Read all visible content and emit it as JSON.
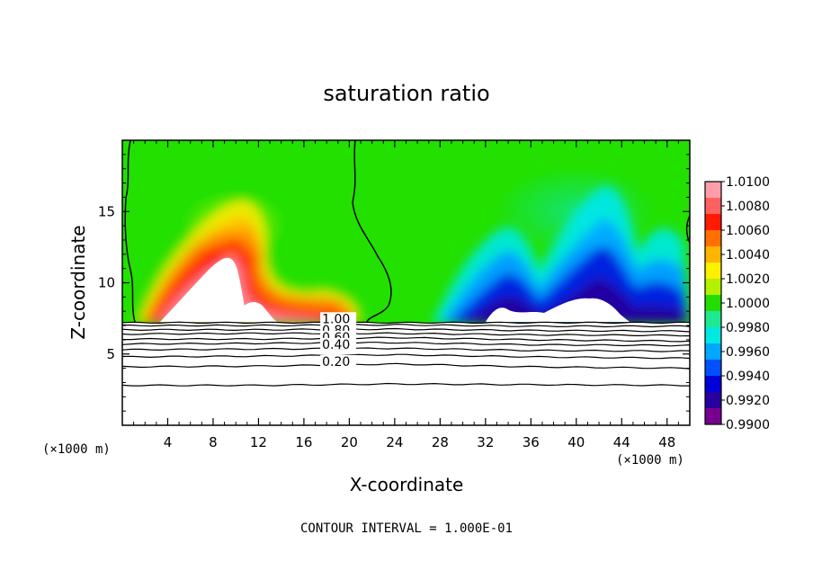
{
  "chart_data": {
    "type": "heatmap",
    "title": "saturation ratio",
    "xlabel": "X-coordinate",
    "ylabel": "Z-coordinate",
    "x_unit_left": "(×1000 m)",
    "x_unit_right": "(×1000 m)",
    "footer": "CONTOUR INTERVAL = 1.000E-01",
    "xlim": [
      0,
      50
    ],
    "ylim": [
      0,
      20
    ],
    "x_ticks": [
      4,
      8,
      12,
      16,
      20,
      24,
      28,
      32,
      36,
      40,
      44,
      48
    ],
    "x_tick_labels": [
      "4",
      "8",
      "12",
      "16",
      "20",
      "24",
      "28",
      "32",
      "36",
      "40",
      "44",
      "48"
    ],
    "y_ticks": [
      5,
      10,
      15
    ],
    "y_tick_labels": [
      "5",
      "10",
      "15"
    ],
    "colorbar": {
      "range": [
        0.99,
        1.01
      ],
      "labels": [
        "1.0100",
        "1.0080",
        "1.0060",
        "1.0040",
        "1.0020",
        "1.0000",
        "0.9980",
        "0.9960",
        "0.9940",
        "0.9920",
        "0.9900"
      ],
      "colors": [
        "#ff9ea8",
        "#ff6060",
        "#ff1a00",
        "#ff7000",
        "#ffb400",
        "#fff000",
        "#b4f000",
        "#22dd00",
        "#1ee890",
        "#00e8e0",
        "#00a8ff",
        "#0050ff",
        "#0000d8",
        "#2800a0",
        "#780090"
      ]
    },
    "filled_region_z": [
      7.2,
      20
    ],
    "contour_labels": [
      {
        "text": "1.00",
        "level": 1.0,
        "x": 17.6,
        "z": 7.3
      },
      {
        "text": "0.80",
        "level": 0.8,
        "x": 17.6,
        "z": 6.5
      },
      {
        "text": "0.60",
        "level": 0.6,
        "x": 17.6,
        "z": 6.0
      },
      {
        "text": "0.40",
        "level": 0.4,
        "x": 17.6,
        "z": 5.5
      },
      {
        "text": "0.20",
        "level": 0.2,
        "x": 17.6,
        "z": 4.3
      }
    ],
    "lower_contours": [
      {
        "level": 1.0,
        "z": [
          7.2,
          7.2,
          7.2,
          7.2,
          7.2
        ]
      },
      {
        "level": 0.9,
        "z": [
          7.0,
          7.0,
          7.05,
          6.95,
          6.95
        ]
      },
      {
        "level": 0.8,
        "z": [
          6.7,
          6.7,
          6.75,
          6.65,
          6.6
        ]
      },
      {
        "level": 0.7,
        "z": [
          6.4,
          6.45,
          6.45,
          6.35,
          6.3
        ]
      },
      {
        "level": 0.6,
        "z": [
          6.05,
          6.05,
          6.15,
          6.0,
          5.9
        ]
      },
      {
        "level": 0.5,
        "z": [
          5.7,
          5.75,
          5.8,
          5.65,
          5.6
        ]
      },
      {
        "level": 0.4,
        "z": [
          5.3,
          5.35,
          5.4,
          5.25,
          5.2
        ]
      },
      {
        "level": 0.3,
        "z": [
          4.8,
          4.85,
          4.95,
          4.8,
          4.7
        ]
      },
      {
        "level": 0.2,
        "z": [
          4.1,
          4.15,
          4.3,
          4.1,
          4.0
        ]
      },
      {
        "level": 0.1,
        "z": [
          2.8,
          2.8,
          2.9,
          2.85,
          2.8
        ]
      }
    ],
    "lower_contours_x": [
      0,
      12,
      24,
      36,
      50
    ]
  }
}
